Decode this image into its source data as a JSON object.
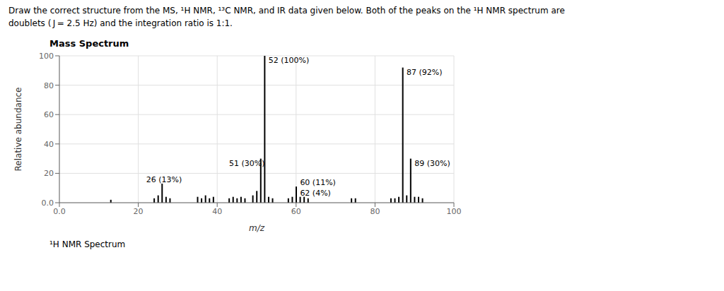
{
  "chart_data": {
    "type": "bar",
    "title": "Mass Spectrum",
    "subtitle": [
      "Draw the correct structure from the MS, ¹H NMR, ¹³C NMR, and IR data given below. Both of the peaks on the ¹H NMR spectrum are",
      "doublets ( J = 2.5 Hz) and the integration ratio is 1:1."
    ],
    "footer": "¹H NMR Spectrum",
    "x_label": "m/z",
    "y_label": "Relative abundance",
    "x": [
      13,
      24,
      25,
      26,
      27,
      28,
      35,
      36,
      37,
      38,
      39,
      43,
      44,
      45,
      46,
      47,
      49,
      50,
      51,
      52,
      53,
      54,
      58,
      59,
      60,
      61,
      62,
      63,
      74,
      75,
      84,
      85,
      86,
      87,
      88,
      89,
      90,
      91,
      92
    ],
    "values": [
      2,
      3,
      5,
      13,
      4,
      3,
      4,
      3,
      5,
      3,
      4,
      3,
      4,
      3,
      4,
      3,
      5,
      8,
      30,
      100,
      4,
      3,
      3,
      4,
      11,
      4,
      4,
      3,
      3,
      3,
      3,
      3,
      4,
      92,
      5,
      30,
      4,
      4,
      3
    ],
    "color": "#000000",
    "xlim": [
      0,
      100
    ],
    "ylim": [
      0,
      100
    ],
    "xticks": [
      {
        "value": 0,
        "label": "0.0"
      },
      20,
      40,
      60,
      80,
      100
    ],
    "yticks": [
      {
        "value": 0,
        "label": "0.0"
      },
      20,
      40,
      60,
      80,
      100
    ],
    "grid": true,
    "annotations": [
      {
        "text": "26 (13%)",
        "x": 22,
        "y": 14
      },
      {
        "text": "51 (30%)",
        "x": 43,
        "y": 25
      },
      {
        "text": "52 (100%)",
        "x": 53,
        "y": 95
      },
      {
        "text": "60 (11%)",
        "x": 61,
        "y": 12
      },
      {
        "text": "62 (4%)",
        "x": 61,
        "y": 5
      },
      {
        "text": "87 (92%)",
        "x": 88,
        "y": 87
      },
      {
        "text": "89 (30%)",
        "x": 90,
        "y": 25
      }
    ]
  }
}
